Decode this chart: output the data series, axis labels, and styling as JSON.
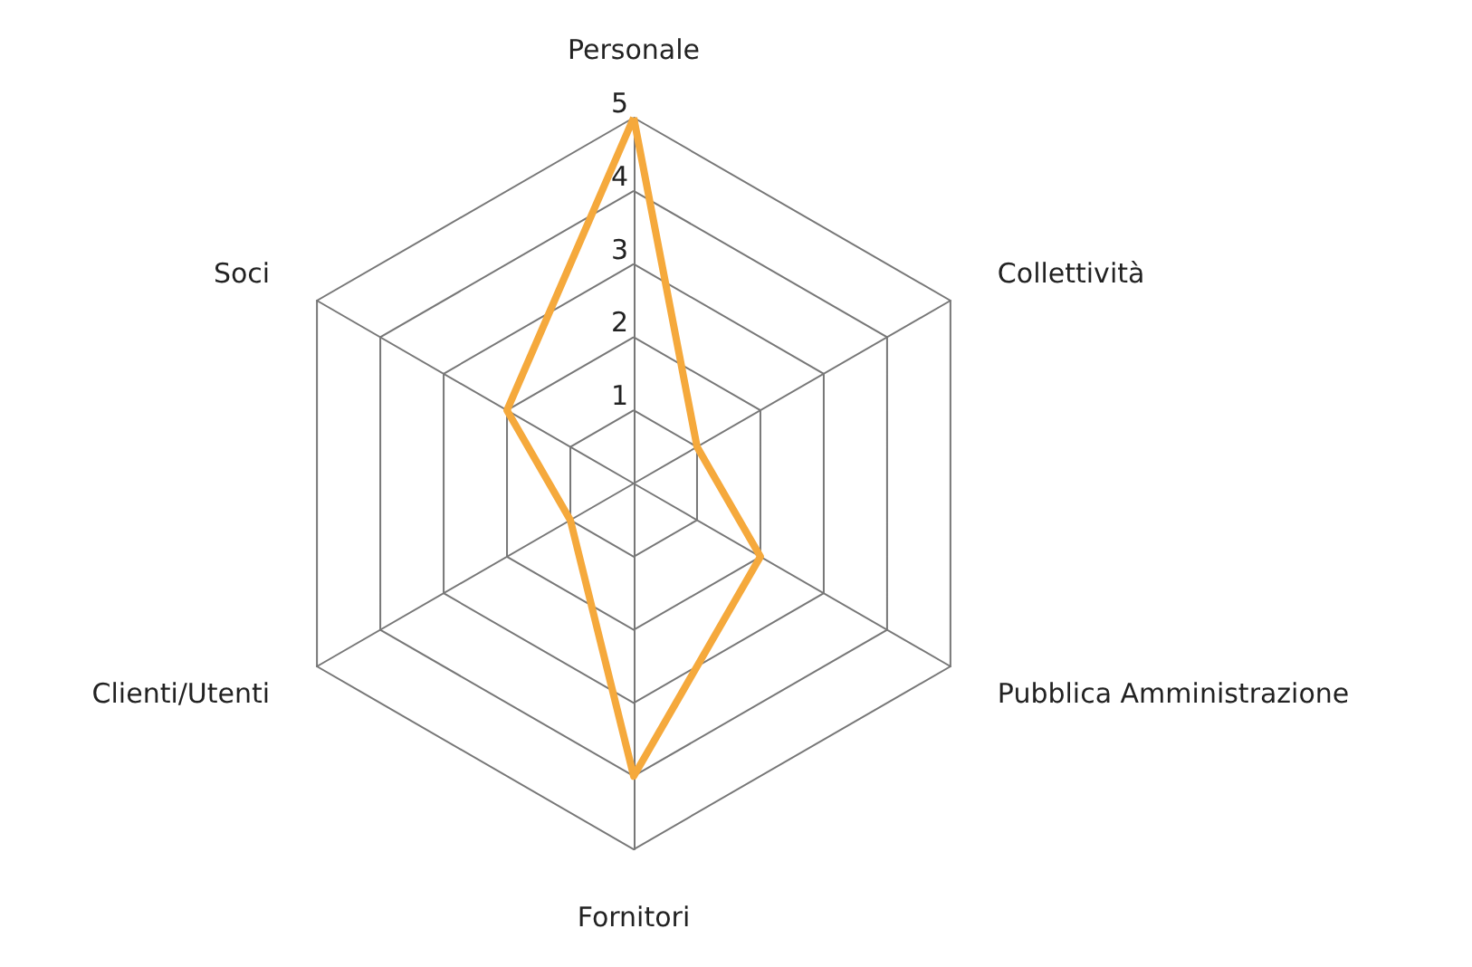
{
  "chart_data": {
    "type": "radar",
    "categories": [
      "Personale",
      "Collettività",
      "Pubblica Amministrazione",
      "Fornitori",
      "Clienti/Utenti",
      "Soci"
    ],
    "series": [
      {
        "color": "#f5a93c",
        "values": [
          5,
          1,
          2,
          4,
          1,
          2
        ]
      }
    ],
    "ylim": [
      0,
      5
    ],
    "yticks": [
      1,
      2,
      3,
      4,
      5
    ],
    "marker": "none"
  }
}
